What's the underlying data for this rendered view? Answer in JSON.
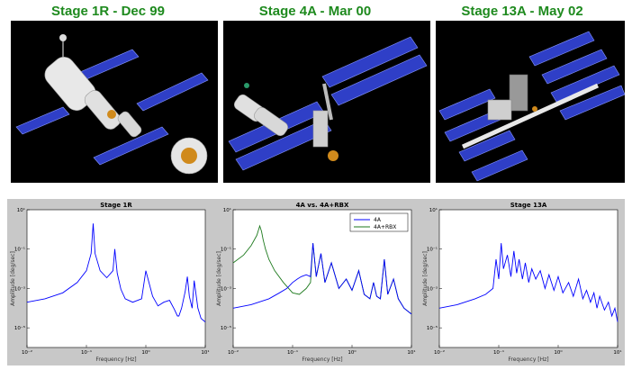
{
  "stages": [
    {
      "title": "Stage 1R - Dec 99"
    },
    {
      "title": "Stage 4A - Mar 00"
    },
    {
      "title": "Stage 13A - May 02"
    }
  ],
  "colors": {
    "title_green": "#1e8a1e",
    "panel_blue": "#2f3fc7",
    "series_blue": "#0000ff",
    "series_green": "#1e7a1e",
    "plot_bg": "#c8c8c8"
  },
  "chart_data": [
    {
      "type": "line",
      "title": "Stage 1R",
      "xlabel": "Frequency [Hz]",
      "ylabel": "Amplitude [deg/sec]",
      "xscale": "log",
      "yscale": "log",
      "xlim": [
        0.01,
        10
      ],
      "ylim": [
        1e-06,
        10
      ],
      "xticks": [
        "10⁻²",
        "10⁻¹",
        "10⁰",
        "10¹"
      ],
      "yticks": [
        "10¹",
        "10⁻¹",
        "10⁻³",
        "10⁻⁵"
      ],
      "series": [
        {
          "color": "#0000ff",
          "x": [
            0.01,
            0.02,
            0.04,
            0.07,
            0.1,
            0.12,
            0.13,
            0.14,
            0.17,
            0.22,
            0.28,
            0.3,
            0.33,
            0.38,
            0.45,
            0.6,
            0.85,
            1.0,
            1.3,
            1.6,
            2.0,
            2.5,
            3.0,
            3.4,
            3.6,
            4.0,
            4.6,
            5.0,
            5.4,
            6.0,
            6.5,
            7.5,
            8.5,
            10
          ],
          "y": [
            0.0002,
            0.0003,
            0.0006,
            0.002,
            0.008,
            0.06,
            2.0,
            0.06,
            0.008,
            0.0035,
            0.008,
            0.1,
            0.006,
            0.0009,
            0.0003,
            0.0002,
            0.0003,
            0.008,
            0.0004,
            0.00013,
            0.0002,
            0.00025,
            9e-05,
            4e-05,
            4e-05,
            0.0001,
            0.0007,
            0.004,
            0.0004,
            0.0001,
            0.0025,
            0.0001,
            3e-05,
            2e-05
          ]
        }
      ]
    },
    {
      "type": "line",
      "title": "4A vs. 4A+RBX",
      "xlabel": "Frequency [Hz]",
      "ylabel": "Amplitude [deg/sec]",
      "xscale": "log",
      "yscale": "log",
      "xlim": [
        0.01,
        10
      ],
      "ylim": [
        1e-06,
        10
      ],
      "xticks": [
        "10⁻²",
        "10⁻¹",
        "10⁰",
        "10¹"
      ],
      "yticks": [
        "10¹",
        "10⁻¹",
        "10⁻³",
        "10⁻⁵"
      ],
      "legend": "top-right",
      "series": [
        {
          "name": "4A",
          "color": "#0000ff",
          "x": [
            0.01,
            0.02,
            0.04,
            0.06,
            0.08,
            0.1,
            0.12,
            0.14,
            0.17,
            0.2,
            0.22,
            0.25,
            0.3,
            0.35,
            0.45,
            0.6,
            0.8,
            1.0,
            1.3,
            1.6,
            2.0,
            2.3,
            2.6,
            3.0,
            3.5,
            4.0,
            5.0,
            6.0,
            7.5,
            10
          ],
          "y": [
            0.0001,
            0.00015,
            0.0003,
            0.0006,
            0.001,
            0.002,
            0.003,
            0.004,
            0.005,
            0.004,
            0.2,
            0.004,
            0.06,
            0.002,
            0.02,
            0.001,
            0.003,
            0.0008,
            0.008,
            0.0005,
            0.0003,
            0.002,
            0.0004,
            0.0003,
            0.03,
            0.0005,
            0.003,
            0.0003,
            0.0001,
            5e-05
          ]
        },
        {
          "name": "4A+RBX",
          "color": "#1e7a1e",
          "x": [
            0.01,
            0.015,
            0.02,
            0.025,
            0.028,
            0.03,
            0.032,
            0.035,
            0.04,
            0.05,
            0.07,
            0.1,
            0.13,
            0.17,
            0.2,
            0.22,
            0.25,
            0.3,
            0.35,
            0.45,
            0.6,
            0.8,
            1.0,
            1.3,
            1.6,
            2.0,
            2.3,
            2.6,
            3.0,
            3.5,
            4.0,
            5.0,
            6.0,
            7.5,
            10
          ],
          "y": [
            0.02,
            0.05,
            0.15,
            0.5,
            1.5,
            0.8,
            0.3,
            0.1,
            0.03,
            0.008,
            0.002,
            0.0006,
            0.0005,
            0.001,
            0.002,
            0.2,
            0.004,
            0.06,
            0.002,
            0.02,
            0.001,
            0.003,
            0.0008,
            0.008,
            0.0005,
            0.0003,
            0.002,
            0.0004,
            0.0003,
            0.03,
            0.0005,
            0.003,
            0.0003,
            0.0001,
            5e-05
          ]
        }
      ]
    },
    {
      "type": "line",
      "title": "Stage 13A",
      "xlabel": "Frequency [Hz]",
      "ylabel": "Amplitude [deg/sec]",
      "xscale": "log",
      "yscale": "log",
      "xlim": [
        0.01,
        10
      ],
      "ylim": [
        1e-06,
        10
      ],
      "xticks": [
        "10⁻²",
        "10⁻¹",
        "10⁰",
        "10¹"
      ],
      "yticks": [
        "10¹",
        "10⁻¹",
        "10⁻³",
        "10⁻⁵"
      ],
      "series": [
        {
          "color": "#0000ff",
          "x": [
            0.01,
            0.02,
            0.04,
            0.06,
            0.08,
            0.09,
            0.1,
            0.11,
            0.12,
            0.14,
            0.16,
            0.18,
            0.2,
            0.22,
            0.25,
            0.28,
            0.32,
            0.36,
            0.42,
            0.5,
            0.6,
            0.7,
            0.85,
            1.0,
            1.2,
            1.5,
            1.8,
            2.2,
            2.6,
            3.0,
            3.5,
            4.0,
            4.5,
            5.0,
            6.0,
            7.0,
            8.0,
            9.0,
            10
          ],
          "y": [
            0.0001,
            0.00015,
            0.0003,
            0.0005,
            0.001,
            0.03,
            0.003,
            0.2,
            0.01,
            0.05,
            0.004,
            0.08,
            0.006,
            0.03,
            0.003,
            0.02,
            0.002,
            0.01,
            0.003,
            0.008,
            0.001,
            0.005,
            0.0008,
            0.004,
            0.0006,
            0.002,
            0.0004,
            0.003,
            0.0003,
            0.0008,
            0.0002,
            0.0006,
            0.0001,
            0.0004,
            8e-05,
            0.0002,
            4e-05,
            0.0001,
            2e-05
          ]
        }
      ]
    }
  ]
}
